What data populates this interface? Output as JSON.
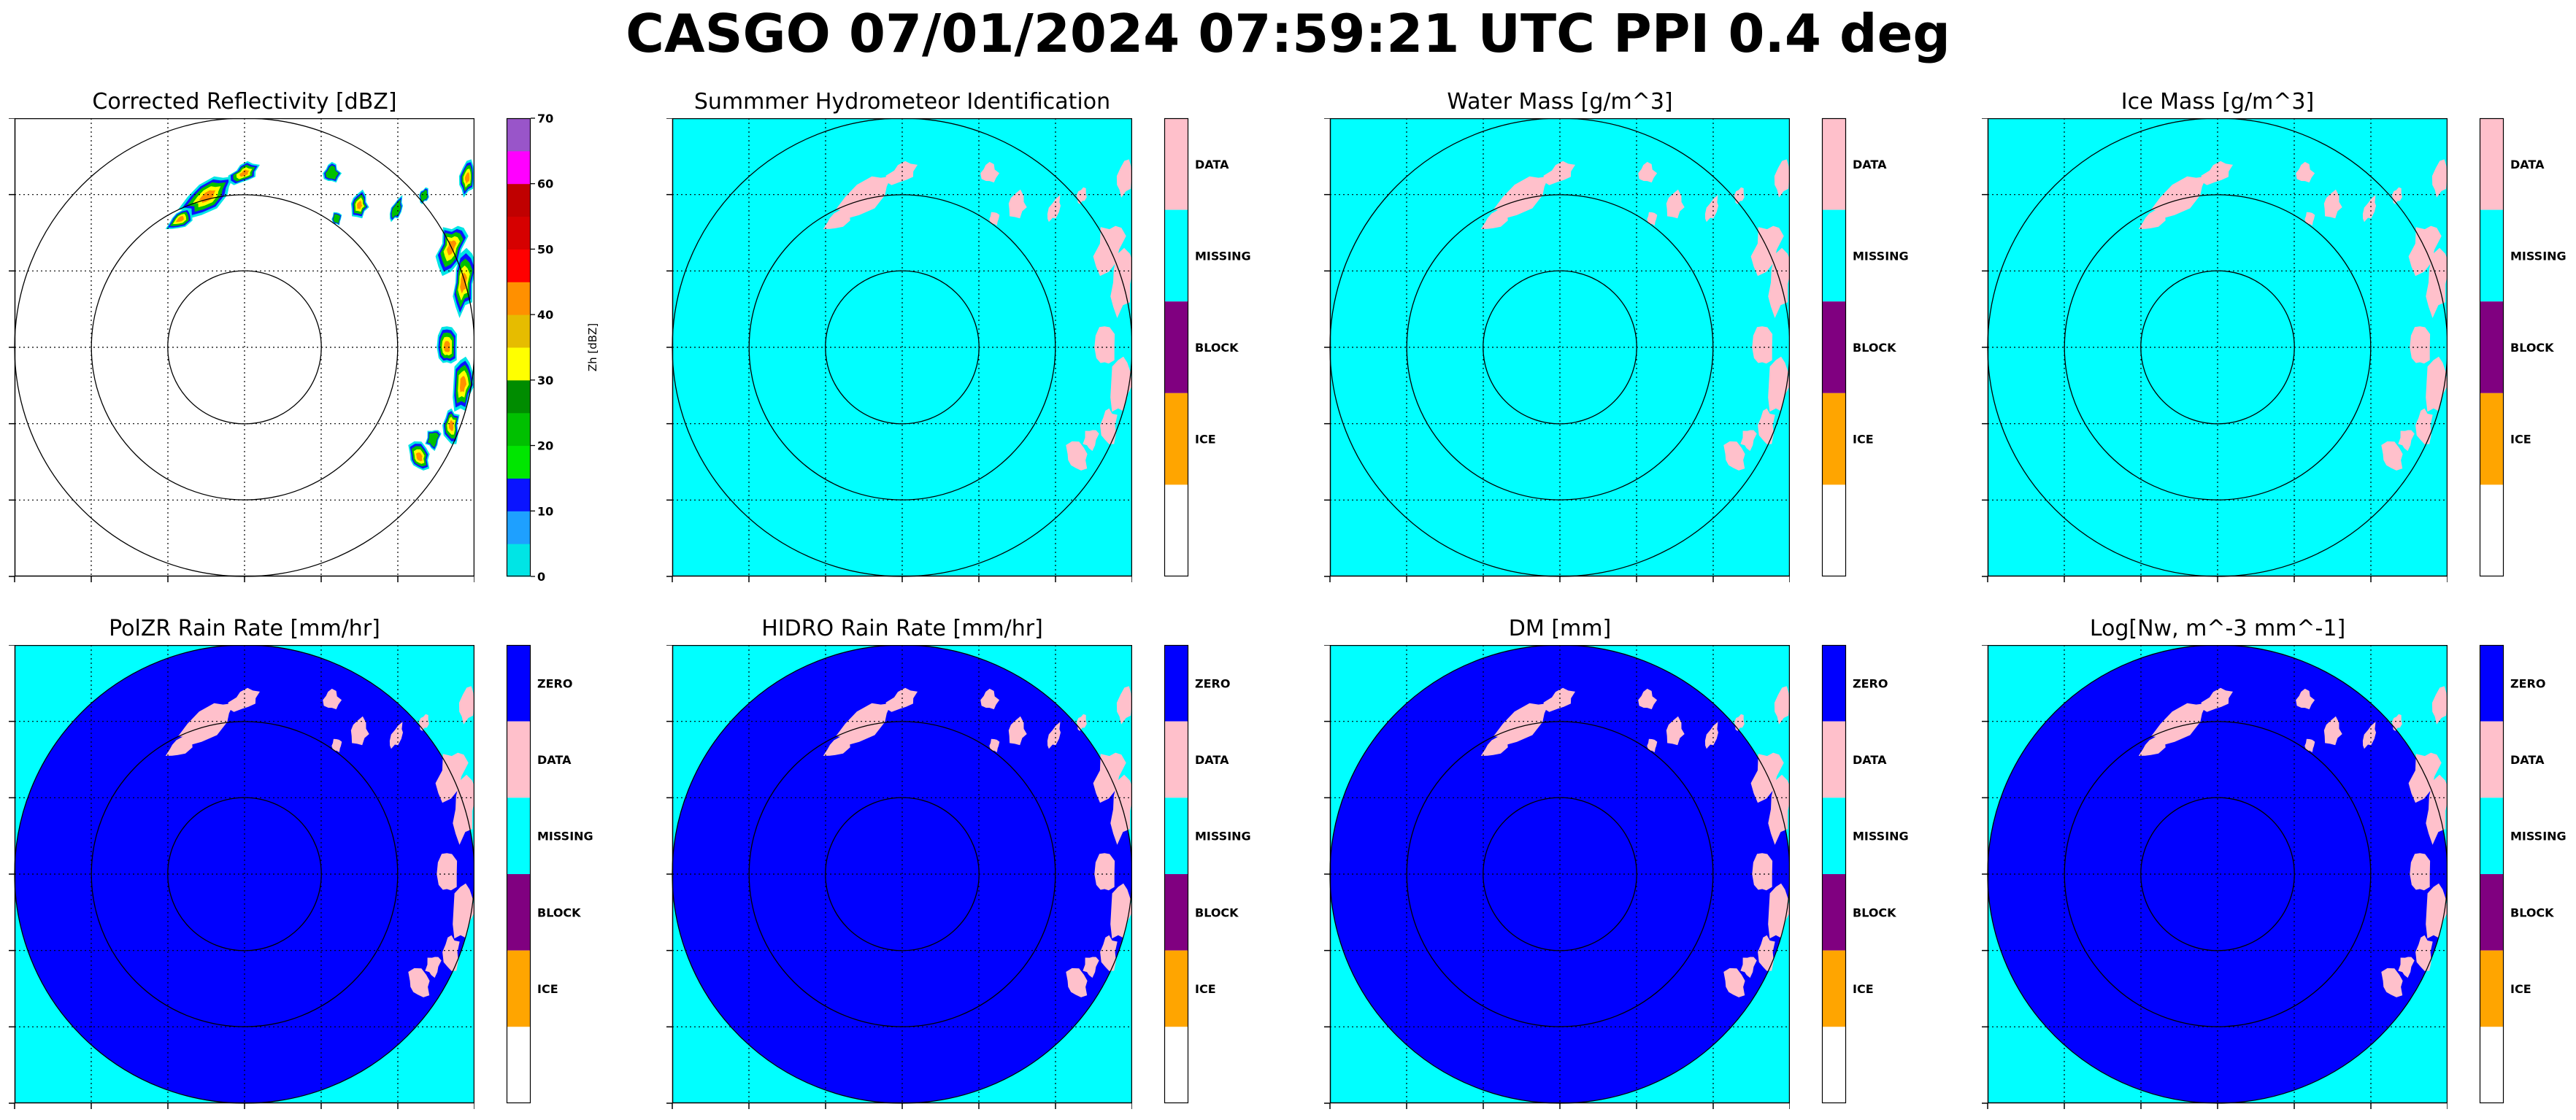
{
  "figure": {
    "suptitle": "CASGO 07/01/2024 07:59:21 UTC PPI 0.4 deg"
  },
  "colors": {
    "missing": "#00ffff",
    "data": "#ffc0cb",
    "zero": "#0000ff",
    "block": "#800080",
    "ice": "#ffa500",
    "background": "#ffffff",
    "reflectivity_scale": [
      "#00e5e5",
      "#1ea0ff",
      "#0a14ff",
      "#00e600",
      "#00c000",
      "#008c00",
      "#ffff00",
      "#e6bc00",
      "#ff9000",
      "#ff0000",
      "#d60000",
      "#c00000",
      "#ff00ff",
      "#9955c9"
    ]
  },
  "panels": [
    {
      "id": "reflectivity",
      "title": "Corrected Reflectivity [dBZ]",
      "fill": "none",
      "colorbar": {
        "type": "continuous",
        "label": "Zh [dBZ]",
        "ticks": [
          "0",
          "10",
          "20",
          "30",
          "40",
          "50",
          "60",
          "70"
        ],
        "range": [
          0,
          70
        ]
      }
    },
    {
      "id": "hydrometeor",
      "title": "Summmer Hydrometeor Identification",
      "fill": "full",
      "colorbar": {
        "type": "categorical",
        "labels": [
          "DATA",
          "MISSING",
          "BLOCK",
          "ICE",
          ""
        ]
      }
    },
    {
      "id": "water-mass",
      "title": "Water Mass [g/m^3]",
      "fill": "full",
      "colorbar": {
        "type": "categorical",
        "labels": [
          "DATA",
          "MISSING",
          "BLOCK",
          "ICE",
          ""
        ]
      }
    },
    {
      "id": "ice-mass",
      "title": "Ice Mass [g/m^3]",
      "fill": "full",
      "colorbar": {
        "type": "categorical",
        "labels": [
          "DATA",
          "MISSING",
          "BLOCK",
          "ICE",
          ""
        ]
      }
    },
    {
      "id": "polzr-rain-rate",
      "title": "PolZR Rain Rate [mm/hr]",
      "fill": "disk",
      "colorbar": {
        "type": "categorical",
        "labels": [
          "ZERO",
          "DATA",
          "MISSING",
          "BLOCK",
          "ICE",
          ""
        ]
      }
    },
    {
      "id": "hidro-rain-rate",
      "title": "HIDRO Rain Rate [mm/hr]",
      "fill": "disk",
      "colorbar": {
        "type": "categorical",
        "labels": [
          "ZERO",
          "DATA",
          "MISSING",
          "BLOCK",
          "ICE",
          ""
        ]
      }
    },
    {
      "id": "dm",
      "title": "DM [mm]",
      "fill": "disk",
      "colorbar": {
        "type": "categorical",
        "labels": [
          "ZERO",
          "DATA",
          "MISSING",
          "BLOCK",
          "ICE",
          ""
        ]
      }
    },
    {
      "id": "log-nw",
      "title": "Log[Nw, m^-3 mm^-1]",
      "fill": "disk",
      "colorbar": {
        "type": "categorical",
        "labels": [
          "ZERO",
          "DATA",
          "MISSING",
          "BLOCK",
          "ICE",
          ""
        ]
      }
    }
  ]
}
